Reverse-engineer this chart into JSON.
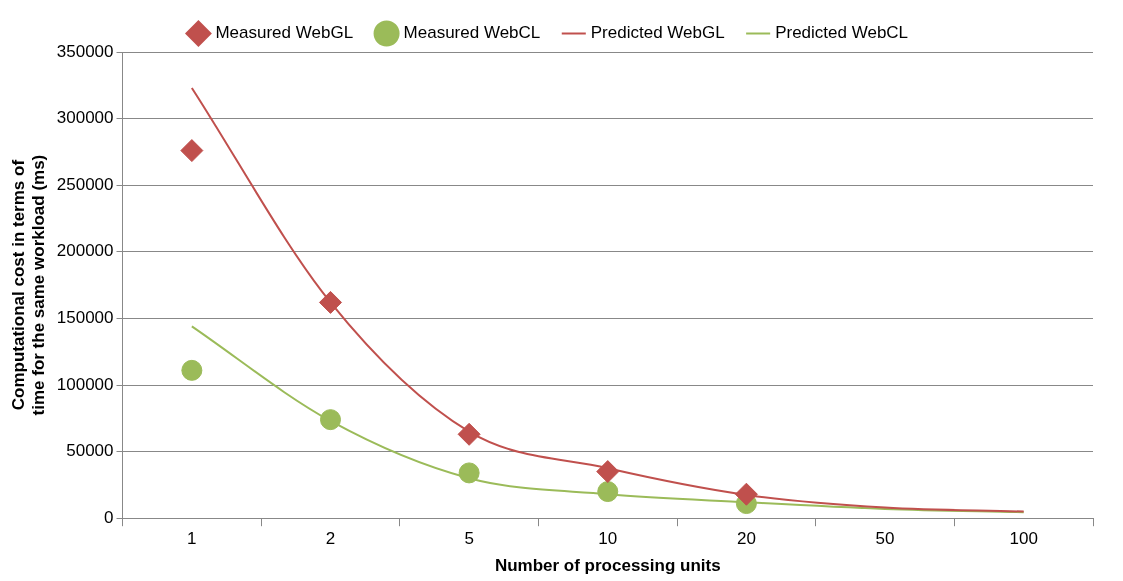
{
  "chart_data": {
    "type": "line",
    "xlabel": "Number of processing units",
    "ylabel": "Computational cost in terms of time for the same workload (ms)",
    "categories": [
      "1",
      "2",
      "5",
      "10",
      "20",
      "50",
      "100"
    ],
    "ylim": [
      0,
      350000
    ],
    "yticks": [
      0,
      50000,
      100000,
      150000,
      200000,
      250000,
      300000,
      350000
    ],
    "grid": "y",
    "legend": "top",
    "series": [
      {
        "name": "Measured WebGL",
        "type": "scatter",
        "marker": "diamond",
        "color": "#c0504d",
        "values": [
          276000,
          162000,
          63000,
          35000,
          18000,
          null,
          null
        ]
      },
      {
        "name": "Measured WebCL",
        "type": "scatter",
        "marker": "circle",
        "color": "#9bbb59",
        "values": [
          111000,
          74000,
          34000,
          20000,
          11000,
          null,
          null
        ]
      },
      {
        "name": "Predicted WebGL",
        "marker": "none",
        "color": "#c0504d",
        "values": [
          323000,
          162000,
          65000,
          37500,
          17500,
          8000,
          5000
        ]
      },
      {
        "name": "Predicted WebCL",
        "marker": "none",
        "color": "#9bbb59",
        "values": [
          144000,
          73000,
          30000,
          18000,
          12000,
          7000,
          4500
        ]
      }
    ]
  }
}
